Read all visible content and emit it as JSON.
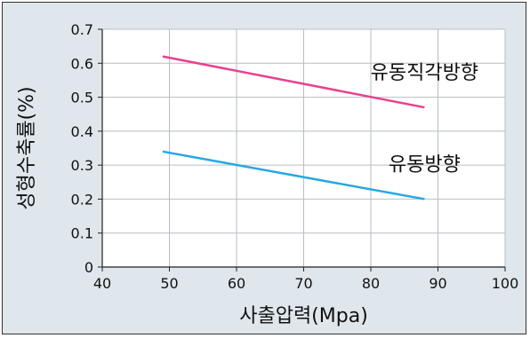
{
  "chart_data": {
    "type": "line",
    "xlabel": "사출압력(Mpa)",
    "ylabel": "성형수축률(%)",
    "xlim": [
      40,
      100
    ],
    "ylim": [
      0,
      0.7
    ],
    "x_ticks": [
      "40",
      "50",
      "60",
      "70",
      "80",
      "90",
      "100"
    ],
    "y_ticks": [
      "0",
      "0.1",
      "0.2",
      "0.3",
      "0.4",
      "0.5",
      "0.6",
      "0.7"
    ],
    "grid": true,
    "series": [
      {
        "name": "유동직각방향",
        "color": "#e8418f",
        "x": [
          49,
          88
        ],
        "y": [
          0.62,
          0.47
        ]
      },
      {
        "name": "유동방향",
        "color": "#27a8e0",
        "x": [
          49,
          88
        ],
        "y": [
          0.34,
          0.2
        ]
      }
    ]
  }
}
